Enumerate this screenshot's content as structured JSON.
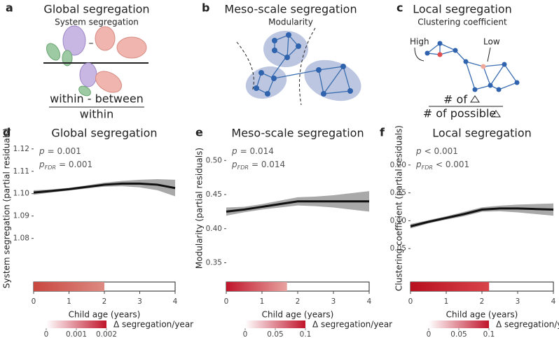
{
  "diagrams": {
    "a": {
      "label": "a",
      "title": "Global segregation",
      "subtitle": "System segregation",
      "minus": "–",
      "numerator": "within - between",
      "denominator": "within"
    },
    "b": {
      "label": "b",
      "title": "Meso-scale segregation",
      "subtitle": "Modularity"
    },
    "c": {
      "label": "c",
      "title": "Local segregation",
      "subtitle": "Clustering coefficient",
      "high": "High",
      "low": "Low",
      "numerator": "# of",
      "denominator": "# of possible"
    }
  },
  "chart_data": [
    {
      "type": "line",
      "panel": "d",
      "title": "Global segregation",
      "ylabel": "System segregation (partial residuals)",
      "xlabel": "Child age (years)",
      "stats": [
        {
          "symbol": "p",
          "text": "= 0.001"
        },
        {
          "symbol": "p",
          "sub": "FDR",
          "text": "= 0.001"
        }
      ],
      "x": [
        0,
        0.5,
        1,
        1.5,
        2,
        2.5,
        3,
        3.5,
        4
      ],
      "series": [
        {
          "color": "#111111",
          "values": [
            1.1005,
            1.1012,
            1.102,
            1.103,
            1.104,
            1.1045,
            1.1045,
            1.104,
            1.1025
          ]
        }
      ],
      "band_upper": [
        1.1015,
        1.1019,
        1.1026,
        1.1037,
        1.1049,
        1.1057,
        1.1062,
        1.1065,
        1.1062
      ],
      "band_lower": [
        1.0995,
        1.1005,
        1.1014,
        1.1023,
        1.1031,
        1.1033,
        1.1028,
        1.1015,
        1.0988
      ],
      "band_color": "#9a9a9a",
      "xlim": [
        0,
        4
      ],
      "xticks": [
        0,
        1,
        2,
        3,
        4
      ],
      "ylim": [
        1.063,
        1.124
      ],
      "yticks": [
        1.08,
        1.09,
        {
          "value": 1.1,
          "label": "1.10"
        },
        1.11,
        1.12
      ],
      "strip_end": 2,
      "strip_colors": [
        "#c9473f",
        "#dc8a82"
      ],
      "cbar_label": "Δ segregation/year",
      "cbar_lim": [
        0,
        0.002
      ],
      "cbar_ticks": [
        0,
        0.001,
        0.002
      ],
      "cbar_colors": [
        "#ffffff",
        "#c0142a"
      ]
    },
    {
      "type": "line",
      "panel": "e",
      "title": "Meso-scale segregation",
      "ylabel": "Modularity (partial residuals)",
      "xlabel": "Child age (years)",
      "stats": [
        {
          "symbol": "p",
          "text": "= 0.014"
        },
        {
          "symbol": "p",
          "sub": "FDR",
          "text": "= 0.014"
        }
      ],
      "x": [
        0,
        0.5,
        1,
        1.5,
        2,
        2.5,
        3,
        3.5,
        4
      ],
      "series": [
        {
          "color": "#111111",
          "values": [
            0.425,
            0.428,
            0.432,
            0.436,
            0.44,
            0.44,
            0.44,
            0.44,
            0.44
          ]
        }
      ],
      "band_upper": [
        0.431,
        0.432,
        0.436,
        0.441,
        0.446,
        0.447,
        0.449,
        0.452,
        0.455
      ],
      "band_lower": [
        0.419,
        0.424,
        0.428,
        0.431,
        0.434,
        0.433,
        0.431,
        0.428,
        0.425
      ],
      "band_color": "#9a9a9a",
      "xlim": [
        0,
        4
      ],
      "xticks": [
        0,
        1,
        2,
        3,
        4
      ],
      "ylim": [
        0.33,
        0.53
      ],
      "yticks": [
        0.35,
        {
          "value": 0.4,
          "label": "0.40"
        },
        0.45,
        {
          "value": 0.5,
          "label": "0.50"
        }
      ],
      "strip_end": 1.7,
      "strip_colors": [
        "#c0142a",
        "#e8a3a0"
      ],
      "cbar_label": "Δ segregation/year",
      "cbar_lim": [
        0,
        0.1
      ],
      "cbar_ticks": [
        0,
        0.05,
        0.1
      ],
      "cbar_colors": [
        "#ffffff",
        "#c0142a"
      ]
    },
    {
      "type": "line",
      "panel": "f",
      "title": "Local segregation",
      "ylabel": "Clustering coefficient (partial residuals)",
      "xlabel": "Child age (years)",
      "stats": [
        {
          "symbol": "p",
          "text": "< 0.001"
        },
        {
          "symbol": "p",
          "sub": "FDR",
          "text": "< 0.001"
        }
      ],
      "x": [
        0,
        0.5,
        1,
        1.5,
        2,
        2.5,
        3,
        3.5,
        4
      ],
      "series": [
        {
          "color": "#111111",
          "values": [
            0.09,
            0.098,
            0.105,
            0.112,
            0.12,
            0.122,
            0.122,
            0.121,
            0.12
          ]
        }
      ],
      "band_upper": [
        0.094,
        0.101,
        0.108,
        0.116,
        0.124,
        0.127,
        0.129,
        0.13,
        0.131
      ],
      "band_lower": [
        0.086,
        0.095,
        0.102,
        0.108,
        0.116,
        0.117,
        0.115,
        0.112,
        0.109
      ],
      "band_color": "#9a9a9a",
      "xlim": [
        0,
        4
      ],
      "xticks": [
        0,
        1,
        2,
        3,
        4
      ],
      "ylim": [
        0,
        0.245
      ],
      "yticks": [
        0.05,
        {
          "value": 0.1,
          "label": "0.10"
        },
        0.15,
        {
          "value": 0.2,
          "label": "0.20"
        }
      ],
      "strip_end": 2.2,
      "strip_colors": [
        "#b8101f",
        "#d8434a"
      ],
      "cbar_label": "Δ segregation/year",
      "cbar_lim": [
        0,
        0.1
      ],
      "cbar_ticks": [
        0,
        0.05,
        0.1
      ],
      "cbar_colors": [
        "#ffffff",
        "#c0142a"
      ]
    }
  ]
}
